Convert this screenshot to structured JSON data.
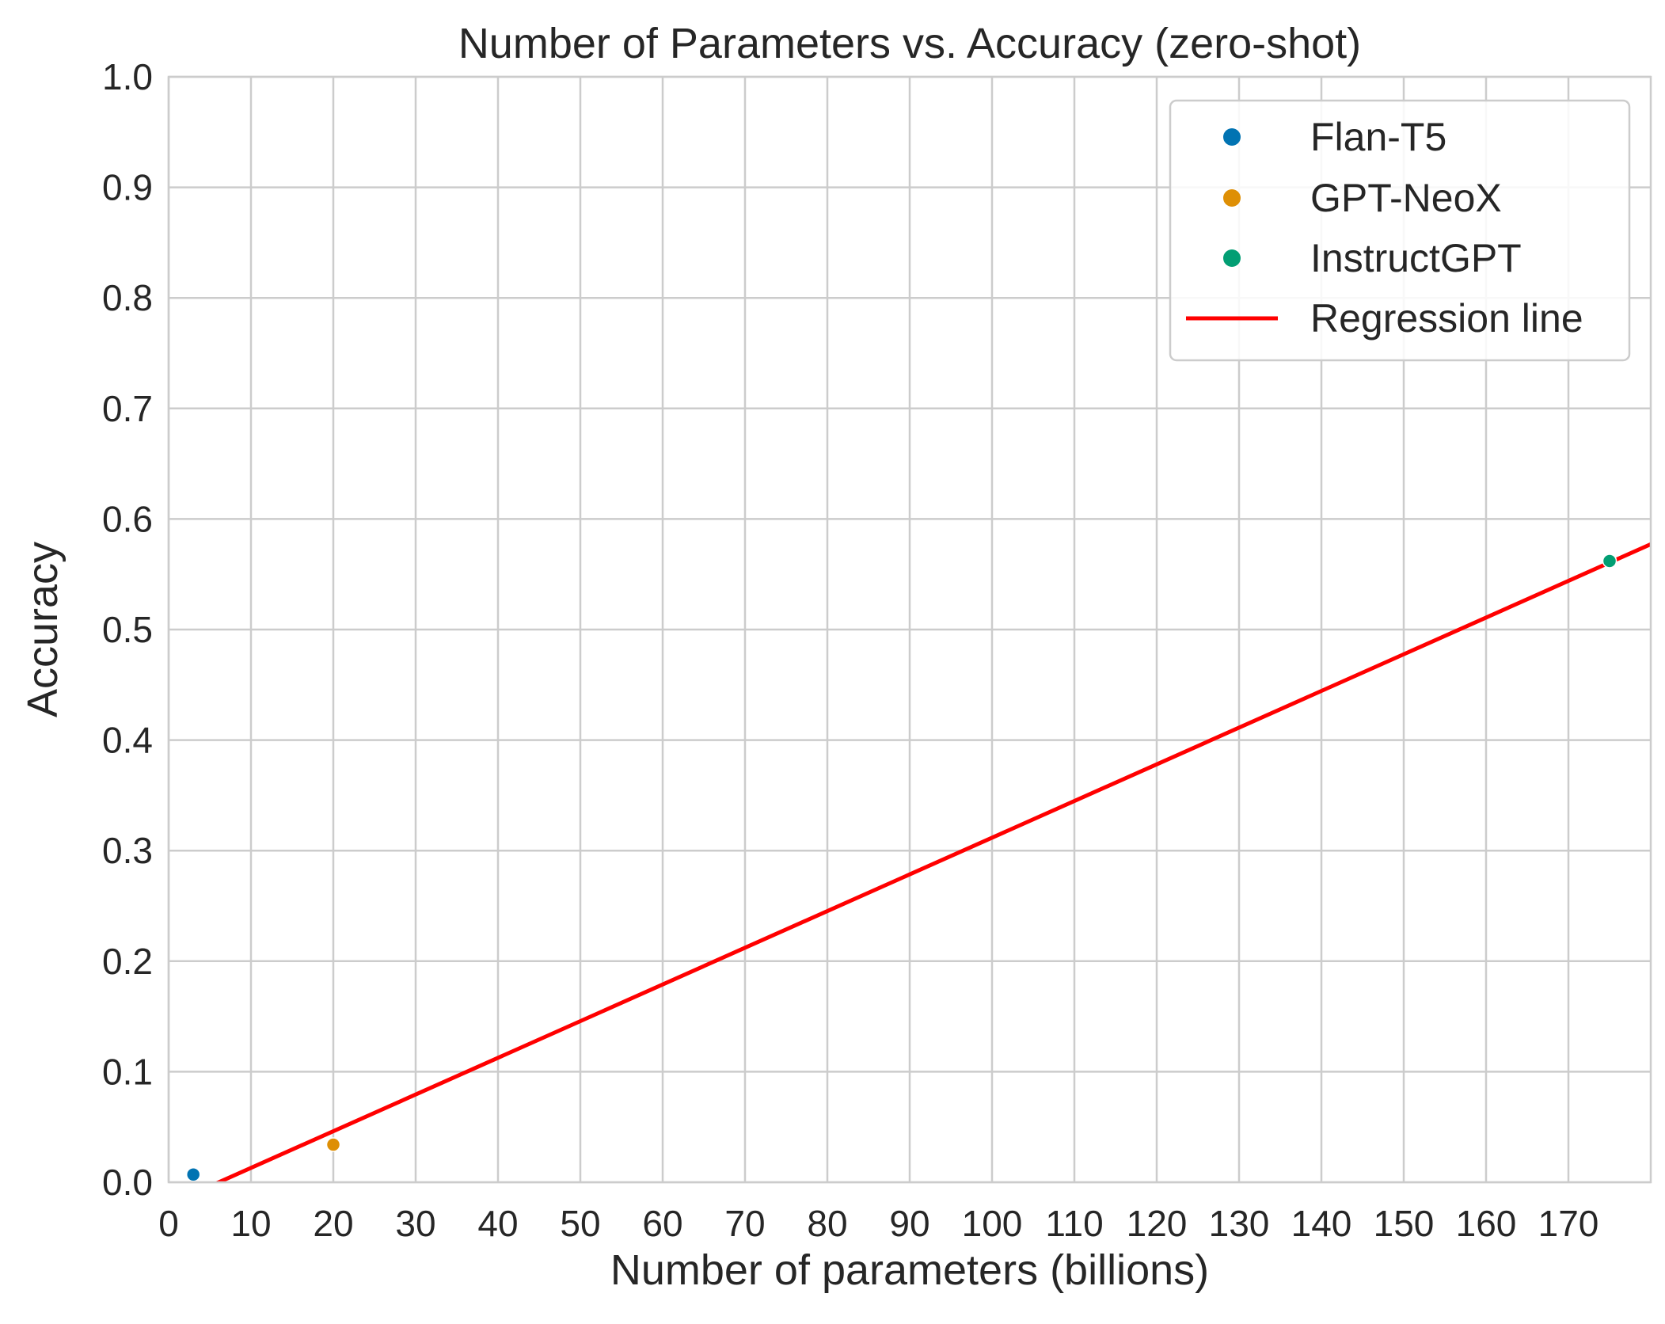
{
  "chart_data": {
    "type": "scatter",
    "title": "Number of Parameters vs. Accuracy (zero-shot)",
    "xlabel": "Number of parameters (billions)",
    "ylabel": "Accuracy",
    "xlim": [
      0,
      180
    ],
    "ylim": [
      0.0,
      1.0
    ],
    "xticks": [
      0,
      10,
      20,
      30,
      40,
      50,
      60,
      70,
      80,
      90,
      100,
      110,
      120,
      130,
      140,
      150,
      160,
      170
    ],
    "yticks": [
      0.0,
      0.1,
      0.2,
      0.3,
      0.4,
      0.5,
      0.6,
      0.7,
      0.8,
      0.9,
      1.0
    ],
    "xtick_labels": [
      "0",
      "10",
      "20",
      "30",
      "40",
      "50",
      "60",
      "70",
      "80",
      "90",
      "100",
      "110",
      "120",
      "130",
      "140",
      "150",
      "160",
      "170"
    ],
    "ytick_labels": [
      "0.0",
      "0.1",
      "0.2",
      "0.3",
      "0.4",
      "0.5",
      "0.6",
      "0.7",
      "0.8",
      "0.9",
      "1.0"
    ],
    "grid": true,
    "legend_position": "top-right",
    "series": [
      {
        "name": "Flan-T5",
        "color": "#0173b2",
        "x": [
          3
        ],
        "y": [
          0.007
        ]
      },
      {
        "name": "GPT-NeoX",
        "color": "#de8f05",
        "x": [
          20
        ],
        "y": [
          0.034
        ]
      },
      {
        "name": "InstructGPT",
        "color": "#029e73",
        "x": [
          175
        ],
        "y": [
          0.562
        ]
      }
    ],
    "regression": {
      "name": "Regression line",
      "color": "#ff0000",
      "x": [
        0,
        180
      ],
      "y": [
        -0.0202,
        0.5772
      ]
    }
  }
}
